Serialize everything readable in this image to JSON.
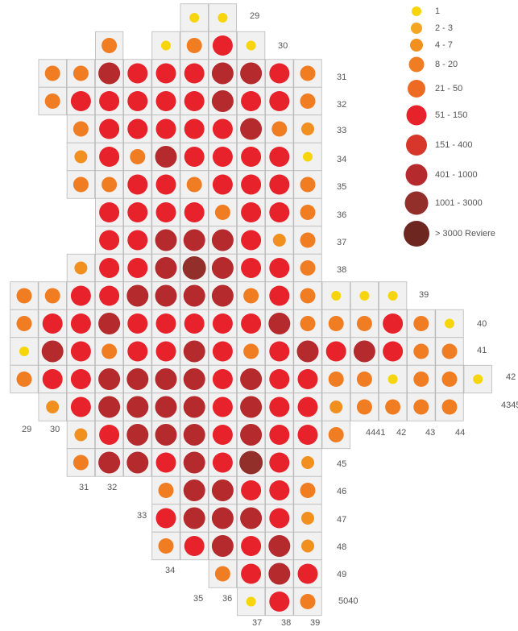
{
  "legend": [
    {
      "label": "1",
      "color": "#f7d50c"
    },
    {
      "label": "2 - 3",
      "color": "#f4a522"
    },
    {
      "label": "4 - 7",
      "color": "#f2901f"
    },
    {
      "label": "8 - 20",
      "color": "#f07d22"
    },
    {
      "label": "21 - 50",
      "color": "#ee6a23"
    },
    {
      "label": "51 - 150",
      "color": "#e8222a"
    },
    {
      "label": "151 - 400",
      "color": "#d7372b"
    },
    {
      "label": "401 - 1000",
      "color": "#b52a2d"
    },
    {
      "label": "1001 - 3000",
      "color": "#922f2a"
    },
    {
      "label": "> 3000  Reviere",
      "color": "#6e2620"
    }
  ],
  "grid": [
    [
      null,
      null,
      null,
      null,
      null,
      null,
      0,
      0
    ],
    [
      null,
      null,
      null,
      3,
      null,
      0,
      3,
      5,
      0
    ],
    [
      null,
      3,
      3,
      7,
      5,
      5,
      5,
      7,
      7,
      5,
      3
    ],
    [
      null,
      3,
      5,
      5,
      5,
      5,
      5,
      7,
      5,
      5,
      3
    ],
    [
      null,
      null,
      3,
      5,
      5,
      5,
      5,
      5,
      7,
      3,
      2
    ],
    [
      null,
      null,
      2,
      5,
      3,
      7,
      5,
      5,
      5,
      5,
      0
    ],
    [
      null,
      null,
      3,
      3,
      5,
      5,
      3,
      5,
      5,
      5,
      3
    ],
    [
      null,
      null,
      null,
      5,
      5,
      5,
      5,
      3,
      5,
      5,
      3
    ],
    [
      null,
      null,
      null,
      5,
      5,
      7,
      7,
      7,
      5,
      2,
      3
    ],
    [
      null,
      null,
      2,
      5,
      5,
      7,
      8,
      7,
      5,
      5,
      3
    ],
    [
      3,
      3,
      5,
      5,
      7,
      7,
      7,
      7,
      3,
      5,
      3,
      0,
      0,
      0
    ],
    [
      3,
      5,
      5,
      7,
      5,
      5,
      5,
      5,
      5,
      7,
      3,
      3,
      3,
      5,
      3,
      0
    ],
    [
      0,
      7,
      5,
      3,
      5,
      5,
      7,
      5,
      3,
      5,
      7,
      5,
      7,
      5,
      3,
      3
    ],
    [
      3,
      5,
      5,
      7,
      7,
      7,
      7,
      5,
      7,
      5,
      5,
      3,
      3,
      0,
      3,
      3,
      0
    ],
    [
      null,
      2,
      5,
      7,
      7,
      7,
      7,
      5,
      7,
      5,
      5,
      2,
      3,
      3,
      3,
      3
    ],
    [
      null,
      null,
      2,
      5,
      7,
      7,
      7,
      5,
      7,
      5,
      5,
      3
    ],
    [
      null,
      null,
      3,
      7,
      7,
      5,
      7,
      5,
      8,
      5,
      2
    ],
    [
      null,
      null,
      null,
      null,
      null,
      3,
      7,
      7,
      5,
      5,
      3
    ],
    [
      null,
      null,
      null,
      null,
      null,
      5,
      7,
      7,
      7,
      5,
      2
    ],
    [
      null,
      null,
      null,
      null,
      null,
      3,
      5,
      7,
      5,
      7,
      2
    ],
    [
      null,
      null,
      null,
      null,
      null,
      null,
      null,
      3,
      5,
      7,
      5
    ],
    [
      null,
      null,
      null,
      null,
      null,
      null,
      null,
      null,
      0,
      5,
      3
    ]
  ],
  "grid_labels": [
    "29",
    "30",
    "31",
    "32",
    "33",
    "34",
    "35",
    "36",
    "37",
    "38",
    "39",
    "40",
    "41",
    "42",
    "4345",
    "29",
    "30",
    "4441",
    "42",
    "43",
    "44",
    "45",
    "46",
    "47",
    "48",
    "49",
    "31",
    "32",
    "33",
    "34",
    "35",
    "36",
    "5040",
    "37",
    "38",
    "39"
  ]
}
